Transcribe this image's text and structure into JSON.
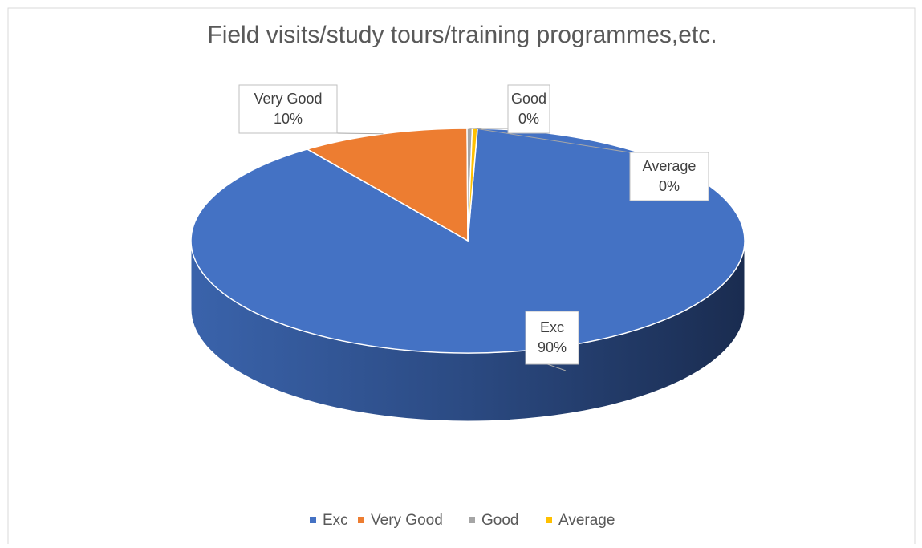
{
  "chart_data": {
    "type": "pie3d",
    "title": "Field visits/study tours/training programmes,etc.",
    "categories": [
      "Exc",
      "Very Good",
      "Good",
      "Average"
    ],
    "values": [
      89.6,
      9.8,
      0.3,
      0.3
    ],
    "value_labels": [
      "90%",
      "10%",
      "0%",
      "0%"
    ],
    "colors": [
      "#4472c4",
      "#ed7d31",
      "#a5a5a5",
      "#ffc000"
    ],
    "legend": "bottom"
  }
}
